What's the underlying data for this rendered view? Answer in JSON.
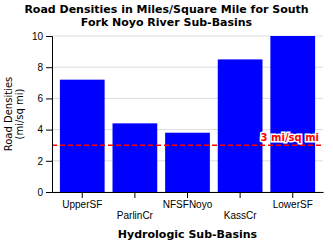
{
  "chart_data": {
    "type": "bar",
    "title": "Road Densities in Miles/Square Mile for South\nFork Noyo River Sub-Basins",
    "xlabel": "Hydrologic Sub-Basins",
    "ylabel": "Road Densities\n(mi/sq mi)",
    "categories": [
      "UpperSF",
      "ParlinCr",
      "NFSFNoyo",
      "KassCr",
      "LowerSF"
    ],
    "values": [
      7.2,
      4.4,
      3.8,
      8.5,
      10.0
    ],
    "color": "#0000ff",
    "ylim": [
      0,
      10
    ],
    "yticks": [
      0,
      2,
      4,
      6,
      8,
      10
    ],
    "grid": true,
    "annotations": [
      {
        "y": 3.0,
        "text": "3 mi/sq mi",
        "color": "#ff0000"
      }
    ]
  }
}
